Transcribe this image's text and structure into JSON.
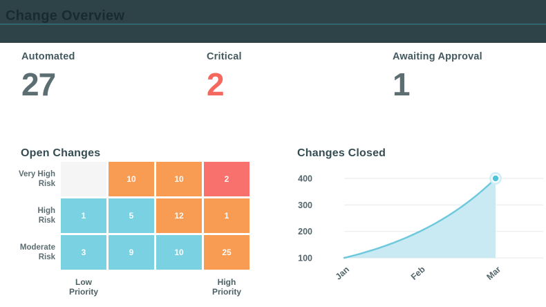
{
  "header": {
    "title": "Change Overview"
  },
  "stats": [
    {
      "label": "Automated",
      "value": "27"
    },
    {
      "label": "Critical",
      "value": "2"
    },
    {
      "label": "Awaiting Approval",
      "value": "1"
    }
  ],
  "colors": {
    "header_bg": "#2d4348",
    "header_rule": "#30666f",
    "stat_value": "#5c6e72",
    "critical_value": "#f4685e",
    "heat_orange": "#f89b53",
    "heat_red": "#f8716c",
    "heat_cyan": "#79d1e1",
    "heat_empty": "#f5f5f6",
    "chart_line": "#6ec9dc",
    "chart_fill": "#c9eaf3",
    "gridline": "#edf0f1"
  },
  "open_changes": {
    "title": "Open Changes",
    "row_labels": [
      {
        "line1": "Very High",
        "line2": "Risk"
      },
      {
        "line1": "High",
        "line2": "Risk"
      },
      {
        "line1": "Moderate",
        "line2": "Risk"
      }
    ],
    "col_label_left": "Low Priority",
    "col_label_right": "High Priority"
  },
  "changes_closed": {
    "title": "Changes Closed"
  },
  "chart_data": [
    {
      "type": "heatmap",
      "title": "Open Changes",
      "rows": [
        "Very High Risk",
        "High Risk",
        "Moderate Risk"
      ],
      "columns": [
        "Low Priority",
        "",
        "",
        "High Priority"
      ],
      "values": [
        [
          null,
          10,
          10,
          2
        ],
        [
          1,
          5,
          12,
          1
        ],
        [
          3,
          9,
          10,
          25
        ]
      ],
      "cell_colors": [
        [
          "empty",
          "orange",
          "orange",
          "red"
        ],
        [
          "cyan",
          "cyan",
          "orange",
          "orange"
        ],
        [
          "cyan",
          "cyan",
          "cyan",
          "orange"
        ]
      ],
      "palette": {
        "orange": "#f89b53",
        "red": "#f8716c",
        "cyan": "#79d1e1",
        "empty": "#f5f5f6"
      }
    },
    {
      "type": "area",
      "title": "Changes Closed",
      "x": [
        "Jan",
        "Feb",
        "Mar"
      ],
      "values": [
        100,
        200,
        400
      ],
      "curve": "exponential",
      "ylim": [
        100,
        400
      ],
      "yticks": [
        100,
        200,
        300,
        400
      ],
      "grid": true,
      "line_color": "#6ec9dc",
      "fill_color": "#c9eaf3",
      "marker_color": "#50c2d9",
      "marker_halo": "#cfeef5",
      "end_marker_at": "Mar"
    }
  ]
}
